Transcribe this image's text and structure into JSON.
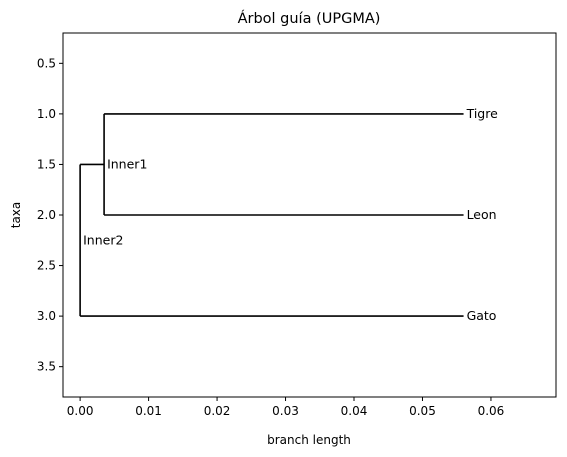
{
  "chart_data": {
    "type": "dendrogram",
    "title": "Árbol guía (UPGMA)",
    "xlabel": "branch length",
    "ylabel": "taxa",
    "xlim": [
      -0.0025,
      0.0695
    ],
    "ylim": [
      3.8,
      0.2
    ],
    "xticks": [
      0.0,
      0.01,
      0.02,
      0.03,
      0.04,
      0.05,
      0.06
    ],
    "xtick_labels": [
      "0.00",
      "0.01",
      "0.02",
      "0.03",
      "0.04",
      "0.05",
      "0.06"
    ],
    "yticks": [
      0.5,
      1.0,
      1.5,
      2.0,
      2.5,
      3.0,
      3.5
    ],
    "ytick_labels": [
      "0.5",
      "1.0",
      "1.5",
      "2.0",
      "2.5",
      "3.0",
      "3.5"
    ],
    "grid": false,
    "nodes": [
      {
        "id": "Inner2",
        "label": "Inner2",
        "parent": null,
        "x": 0.0,
        "y": 2.25
      },
      {
        "id": "Inner1",
        "label": "Inner1",
        "parent": "Inner2",
        "x": 0.0035,
        "y": 1.5
      },
      {
        "id": "Tigre",
        "label": "Tigre",
        "parent": "Inner1",
        "x": 0.056,
        "y": 1.0
      },
      {
        "id": "Leon",
        "label": "Leon",
        "parent": "Inner1",
        "x": 0.056,
        "y": 2.0
      },
      {
        "id": "Gato",
        "label": "Gato",
        "parent": "Inner2",
        "x": 0.056,
        "y": 3.0
      }
    ]
  }
}
